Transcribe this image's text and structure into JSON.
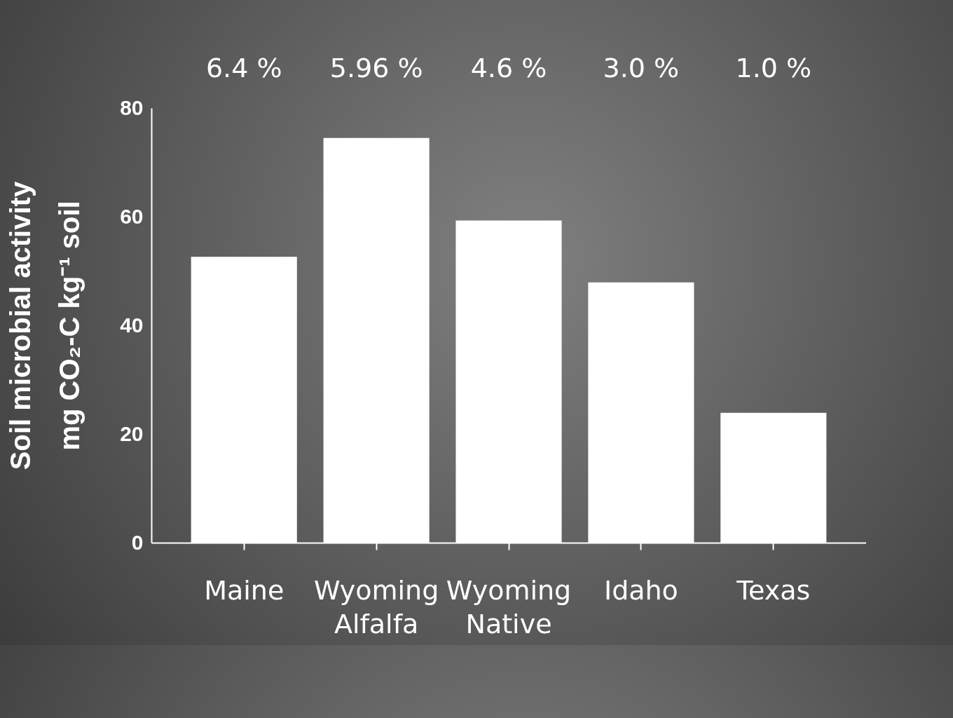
{
  "chart_data": {
    "type": "bar",
    "ylabel": "Soil microbial activity\nmg CO₂-C kg⁻¹ soil",
    "categories": [
      "Maine",
      "Wyoming Alfalfa",
      "Wyoming Native",
      "Idaho",
      "Texas"
    ],
    "values": [
      52.6,
      74.5,
      59.3,
      47.9,
      23.9
    ],
    "color": "#ffffff",
    "ylim": [
      0,
      80
    ],
    "yticks": [
      0,
      20,
      40,
      60,
      80
    ],
    "grid": false,
    "annotations": [
      "6.4 %",
      "5.96 %",
      "4.6 %",
      "3.0 %",
      "1.0 %"
    ]
  }
}
